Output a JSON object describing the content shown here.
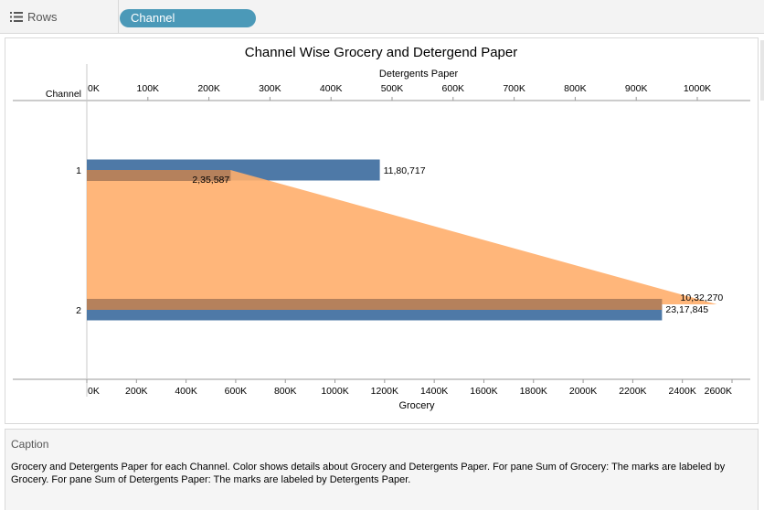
{
  "shelf": {
    "rows_label": "Rows",
    "rows_icon": "list-icon",
    "pill_label": "Channel",
    "pill_color": "#4b99b8"
  },
  "chart_data": {
    "type": "bar",
    "title": "Channel Wise Grocery and Detergend Paper",
    "row_header": "Channel",
    "categories": [
      "1",
      "2"
    ],
    "top_axis": {
      "label": "Detergents Paper",
      "range": [
        0,
        1000000
      ],
      "ticks": [
        0,
        100000,
        200000,
        300000,
        400000,
        500000,
        600000,
        700000,
        800000,
        900000,
        1000000
      ],
      "tick_labels": [
        "0K",
        "100K",
        "200K",
        "300K",
        "400K",
        "500K",
        "600K",
        "700K",
        "800K",
        "900K",
        "1000K"
      ]
    },
    "bottom_axis": {
      "label": "Grocery",
      "range": [
        0,
        2600000
      ],
      "ticks": [
        0,
        200000,
        400000,
        600000,
        800000,
        1000000,
        1200000,
        1400000,
        1600000,
        1800000,
        2000000,
        2200000,
        2400000,
        2600000
      ],
      "tick_labels": [
        "0K",
        "200K",
        "400K",
        "600K",
        "800K",
        "1000K",
        "1200K",
        "1400K",
        "1600K",
        "1800K",
        "2000K",
        "2200K",
        "2400K",
        "2600K"
      ]
    },
    "series": [
      {
        "name": "Grocery",
        "mark": "bar",
        "axis": "bottom",
        "color": "#4e79a7",
        "values": [
          1180717,
          2317845
        ],
        "labels": [
          "11,80,717",
          "23,17,845"
        ]
      },
      {
        "name": "Detergents Paper",
        "mark": "area",
        "axis": "top",
        "color": "#ffae6b",
        "values": [
          235587,
          1032270
        ],
        "labels": [
          "2,35,587",
          "10,32,270"
        ]
      }
    ],
    "overlap_color": "#b5815c",
    "grid": false
  },
  "caption": {
    "title": "Caption",
    "text": "Grocery and Detergents Paper for each Channel.  Color shows details about Grocery and Detergents Paper.  For pane Sum of Grocery:  The marks are labeled by Grocery.  For pane Sum of Detergents Paper:  The marks are labeled by Detergents Paper."
  }
}
